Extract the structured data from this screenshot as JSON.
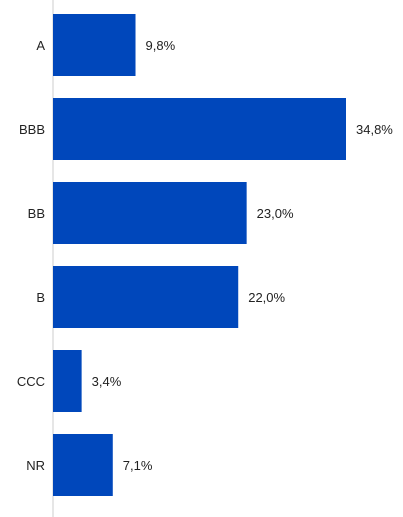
{
  "chart_data": {
    "type": "bar",
    "orientation": "horizontal",
    "categories": [
      "A",
      "BBB",
      "BB",
      "B",
      "CCC",
      "NR"
    ],
    "values": [
      9.8,
      34.8,
      23.0,
      22.0,
      3.4,
      7.1
    ],
    "value_labels": [
      "9,8%",
      "34,8%",
      "23,0%",
      "22,0%",
      "3,4%",
      "7,1%"
    ],
    "xlim": [
      0,
      34.8
    ],
    "bar_color": "#0047BB",
    "axis_color": "#CCCCCC",
    "grid": false,
    "legend": "none"
  }
}
